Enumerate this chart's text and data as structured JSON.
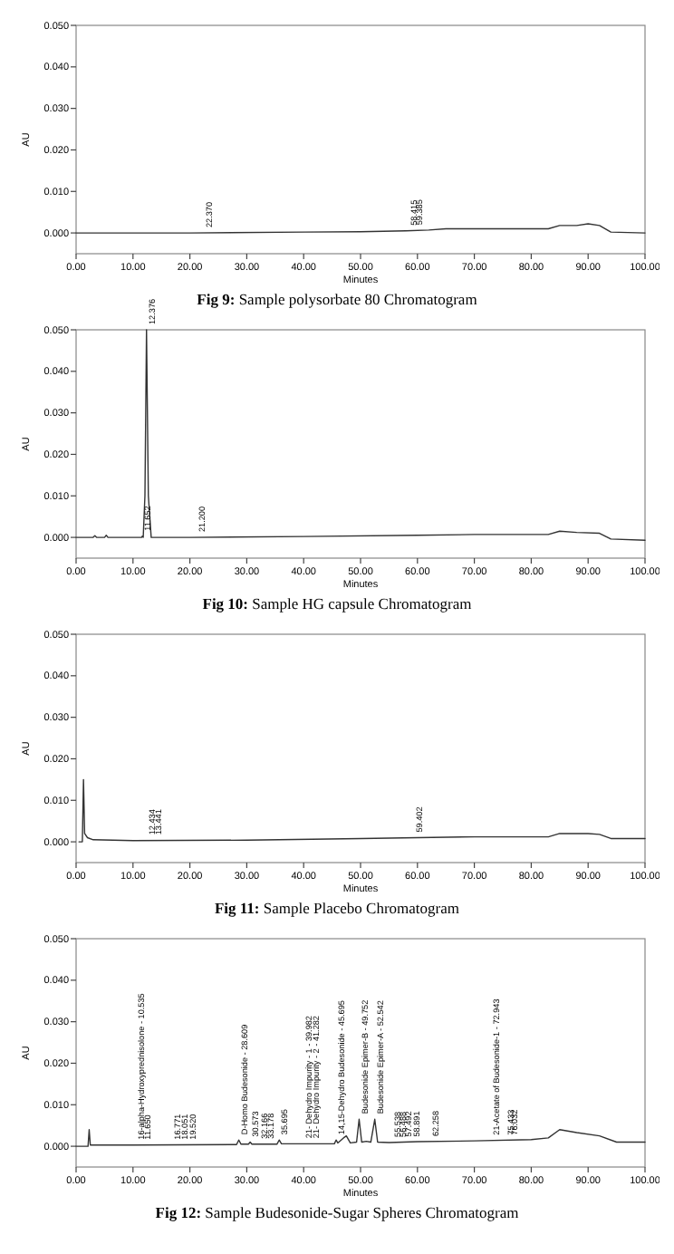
{
  "chart_data": [
    {
      "type": "line",
      "title": "Fig 9: Sample polysorbate 80 Chromatogram",
      "xlabel": "Minutes",
      "ylabel": "AU",
      "xlim": [
        0,
        100
      ],
      "ylim": [
        -0.005,
        0.05
      ],
      "xticks": [
        {
          "value": 0,
          "label": "0.00"
        },
        {
          "value": 10,
          "label": "10.00"
        },
        {
          "value": 20,
          "label": "20.00"
        },
        {
          "value": 30,
          "label": "30.00"
        },
        {
          "value": 40,
          "label": "40.00"
        },
        {
          "value": 50,
          "label": "50.00"
        },
        {
          "value": 60,
          "label": "60.00"
        },
        {
          "value": 70,
          "label": "70.00"
        },
        {
          "value": 80,
          "label": "80.00"
        },
        {
          "value": 90,
          "label": "90.00"
        },
        {
          "value": 100,
          "label": "100.00"
        }
      ],
      "yticks": [
        {
          "value": 0,
          "label": "0.000"
        },
        {
          "value": 0.01,
          "label": "0.010"
        },
        {
          "value": 0.02,
          "label": "0.020"
        },
        {
          "value": 0.03,
          "label": "0.030"
        },
        {
          "value": 0.04,
          "label": "0.040"
        },
        {
          "value": 0.05,
          "label": "0.050"
        }
      ],
      "series": [
        {
          "color": "#333333",
          "x": [
            0,
            20,
            40,
            50,
            58,
            62,
            65,
            75,
            83,
            85,
            88,
            90,
            92,
            94,
            100
          ],
          "values": [
            0,
            0,
            0.0002,
            0.0003,
            0.0005,
            0.0007,
            0.001,
            0.001,
            0.001,
            0.0018,
            0.0018,
            0.0022,
            0.0018,
            0.0002,
            0
          ]
        }
      ],
      "annotations": [
        {
          "text": "22.370",
          "x": 22.37,
          "y": 0
        },
        {
          "text": "58.415",
          "x": 58.415,
          "y": 0.0005
        },
        {
          "text": "59.385",
          "x": 59.385,
          "y": 0.0006
        }
      ]
    },
    {
      "type": "line",
      "title": "Fig 10: Sample HG capsule  Chromatogram",
      "xlabel": "Minutes",
      "ylabel": "AU",
      "xlim": [
        0,
        100
      ],
      "ylim": [
        -0.005,
        0.05
      ],
      "xticks": [
        {
          "value": 0,
          "label": "0.00"
        },
        {
          "value": 10,
          "label": "10.00"
        },
        {
          "value": 20,
          "label": "20.00"
        },
        {
          "value": 30,
          "label": "30.00"
        },
        {
          "value": 40,
          "label": "40.00"
        },
        {
          "value": 50,
          "label": "50.00"
        },
        {
          "value": 60,
          "label": "60.00"
        },
        {
          "value": 70,
          "label": "70.00"
        },
        {
          "value": 80,
          "label": "80.00"
        },
        {
          "value": 90,
          "label": "90.00"
        },
        {
          "value": 100,
          "label": "100.00"
        }
      ],
      "yticks": [
        {
          "value": 0,
          "label": "0.000"
        },
        {
          "value": 0.01,
          "label": "0.010"
        },
        {
          "value": 0.02,
          "label": "0.020"
        },
        {
          "value": 0.03,
          "label": "0.030"
        },
        {
          "value": 0.04,
          "label": "0.040"
        },
        {
          "value": 0.05,
          "label": "0.050"
        }
      ],
      "series": [
        {
          "color": "#333333",
          "x": [
            0,
            3,
            3.3,
            3.6,
            5,
            5.3,
            5.6,
            11.5,
            11.65,
            11.8,
            12.1,
            12.376,
            12.7,
            13.2,
            20,
            40,
            60,
            70,
            83,
            85,
            88,
            92,
            94,
            100
          ],
          "values": [
            0,
            0,
            0.0004,
            0,
            0,
            0.0005,
            0,
            0,
            0.0003,
            0,
            0.01,
            0.05,
            0.01,
            0,
            0,
            0.0002,
            0.0005,
            0.0007,
            0.0007,
            0.0015,
            0.0012,
            0.001,
            -0.0004,
            -0.0007
          ]
        }
      ],
      "annotations": [
        {
          "text": "11.652",
          "x": 11.652,
          "y": 0.0003
        },
        {
          "text": "12.376",
          "x": 12.376,
          "y": 0.05
        },
        {
          "text": "21.200",
          "x": 21.2,
          "y": 0
        }
      ]
    },
    {
      "type": "line",
      "title": "Fig 11: Sample Placebo Chromatogram",
      "xlabel": "Minutes",
      "ylabel": "AU",
      "xlim": [
        0,
        100
      ],
      "ylim": [
        -0.005,
        0.05
      ],
      "xticks": [
        {
          "value": 0,
          "label": "0.00"
        },
        {
          "value": 10,
          "label": "10.00"
        },
        {
          "value": 20,
          "label": "20.00"
        },
        {
          "value": 30,
          "label": "30.00"
        },
        {
          "value": 40,
          "label": "40.00"
        },
        {
          "value": 50,
          "label": "50.00"
        },
        {
          "value": 60,
          "label": "60.00"
        },
        {
          "value": 70,
          "label": "70.00"
        },
        {
          "value": 80,
          "label": "80.00"
        },
        {
          "value": 90,
          "label": "90.00"
        },
        {
          "value": 100,
          "label": "100.00"
        }
      ],
      "yticks": [
        {
          "value": 0,
          "label": "0.000"
        },
        {
          "value": 0.01,
          "label": "0.010"
        },
        {
          "value": 0.02,
          "label": "0.020"
        },
        {
          "value": 0.03,
          "label": "0.030"
        },
        {
          "value": 0.04,
          "label": "0.040"
        },
        {
          "value": 0.05,
          "label": "0.050"
        }
      ],
      "series": [
        {
          "color": "#333333",
          "x": [
            0.5,
            1.1,
            1.3,
            1.5,
            2,
            3,
            10,
            30,
            50,
            60,
            70,
            83,
            85,
            90,
            92,
            94,
            100
          ],
          "values": [
            0,
            0,
            0.015,
            0.002,
            0.001,
            0.0005,
            0.0003,
            0.0004,
            0.0008,
            0.001,
            0.0012,
            0.0012,
            0.002,
            0.002,
            0.0018,
            0.0008,
            0.0008
          ]
        }
      ],
      "annotations": [
        {
          "text": "12.434",
          "x": 12.434,
          "y": 0.0004
        },
        {
          "text": "13.441",
          "x": 13.441,
          "y": 0.0004
        },
        {
          "text": "59.402",
          "x": 59.402,
          "y": 0.001
        }
      ]
    },
    {
      "type": "line",
      "title": "Fig 12: Sample Budesonide-Sugar Spheres Chromatogram",
      "xlabel": "Minutes",
      "ylabel": "AU",
      "xlim": [
        0,
        100
      ],
      "ylim": [
        -0.005,
        0.05
      ],
      "xticks": [
        {
          "value": 0,
          "label": "0.00"
        },
        {
          "value": 10,
          "label": "10.00"
        },
        {
          "value": 20,
          "label": "20.00"
        },
        {
          "value": 30,
          "label": "30.00"
        },
        {
          "value": 40,
          "label": "40.00"
        },
        {
          "value": 50,
          "label": "50.00"
        },
        {
          "value": 60,
          "label": "60.00"
        },
        {
          "value": 70,
          "label": "70.00"
        },
        {
          "value": 80,
          "label": "80.00"
        },
        {
          "value": 90,
          "label": "90.00"
        },
        {
          "value": 100,
          "label": "100.00"
        }
      ],
      "yticks": [
        {
          "value": 0,
          "label": "0.000"
        },
        {
          "value": 0.01,
          "label": "0.010"
        },
        {
          "value": 0.02,
          "label": "0.020"
        },
        {
          "value": 0.03,
          "label": "0.030"
        },
        {
          "value": 0.04,
          "label": "0.040"
        },
        {
          "value": 0.05,
          "label": "0.050"
        }
      ],
      "series": [
        {
          "color": "#333333",
          "x": [
            0,
            2.1,
            2.3,
            2.5,
            10,
            28.2,
            28.6,
            29,
            30.3,
            30.6,
            30.9,
            35.3,
            35.7,
            36.1,
            45.4,
            45.7,
            46,
            47,
            47.5,
            48.2,
            49.3,
            49.75,
            50.2,
            51,
            51.8,
            52.5,
            53,
            55,
            60,
            70,
            80,
            83,
            85,
            88,
            92,
            95,
            100
          ],
          "values": [
            0,
            0,
            0.004,
            0.0003,
            0.0003,
            0.0004,
            0.0015,
            0.0005,
            0.0005,
            0.001,
            0.0005,
            0.0005,
            0.0015,
            0.0006,
            0.0006,
            0.0015,
            0.0008,
            0.002,
            0.0025,
            0.0008,
            0.001,
            0.0065,
            0.001,
            0.0012,
            0.001,
            0.0065,
            0.001,
            0.0009,
            0.0011,
            0.0013,
            0.0016,
            0.002,
            0.004,
            0.0033,
            0.0025,
            0.001,
            0.001
          ]
        }
      ],
      "annotations": [
        {
          "text": "16-alpha-Hydroxyprednisolone - 10.535",
          "x": 10.535,
          "y": 0.0003
        },
        {
          "text": "11.650",
          "x": 11.65,
          "y": 0.0003
        },
        {
          "text": "16.771",
          "x": 16.771,
          "y": 0.0003
        },
        {
          "text": "18.051",
          "x": 18.051,
          "y": 0.0003
        },
        {
          "text": "19.520",
          "x": 19.52,
          "y": 0.0003
        },
        {
          "text": "D-Homo Budesonide - 28.609",
          "x": 28.609,
          "y": 0.0015
        },
        {
          "text": "30.573",
          "x": 30.573,
          "y": 0.001
        },
        {
          "text": "32.166",
          "x": 32.166,
          "y": 0.0005
        },
        {
          "text": "33.178",
          "x": 33.178,
          "y": 0.0005
        },
        {
          "text": "35.695",
          "x": 35.695,
          "y": 0.0015
        },
        {
          "text": "21- Dehydro Impurity - 1 - 39.982",
          "x": 39.982,
          "y": 0.0006
        },
        {
          "text": "21- Dehydro Impurity - 2 - 41.282",
          "x": 41.282,
          "y": 0.0006
        },
        {
          "text": "14,15-Dehydro Budesonide - 45.695",
          "x": 45.695,
          "y": 0.0015
        },
        {
          "text": "Budesonide Epimer-B - 49.752",
          "x": 49.752,
          "y": 0.0065
        },
        {
          "text": "Budesonide Epimer-A - 52.542",
          "x": 52.542,
          "y": 0.0065
        },
        {
          "text": "55.538",
          "x": 55.538,
          "y": 0.0009
        },
        {
          "text": "56.488",
          "x": 56.488,
          "y": 0.0009
        },
        {
          "text": "57.492",
          "x": 57.492,
          "y": 0.001
        },
        {
          "text": "58.891",
          "x": 58.891,
          "y": 0.001
        },
        {
          "text": "62.258",
          "x": 62.258,
          "y": 0.0011
        },
        {
          "text": "21-Acetate of Budesonide-1 - 72.943",
          "x": 72.943,
          "y": 0.0014
        },
        {
          "text": "75.433",
          "x": 75.433,
          "y": 0.0014
        },
        {
          "text": "76.032",
          "x": 76.032,
          "y": 0.0014
        }
      ]
    }
  ]
}
